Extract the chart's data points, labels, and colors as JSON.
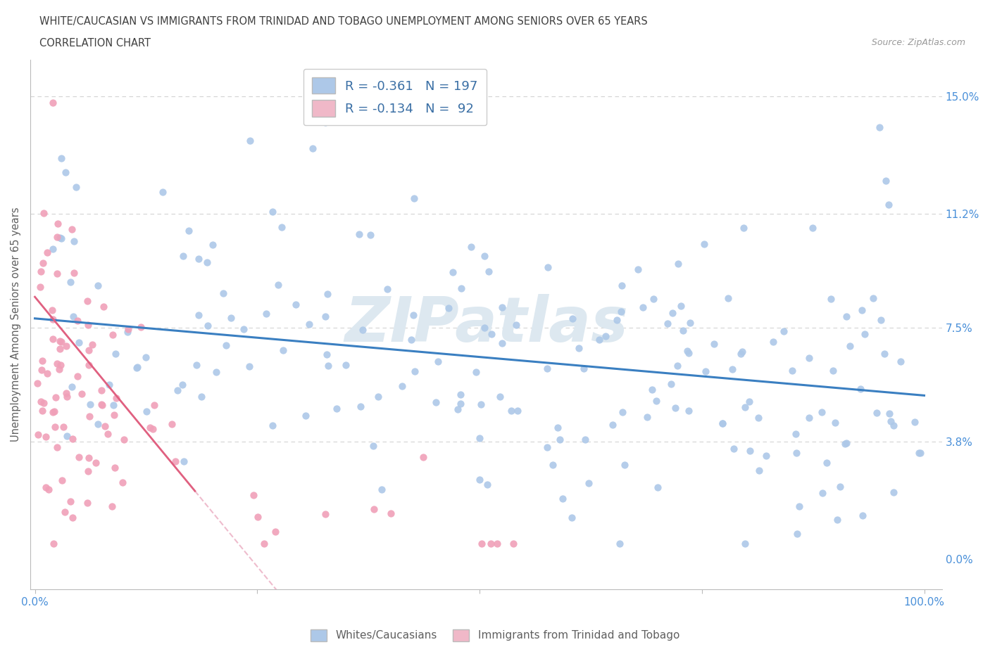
{
  "title_line1": "WHITE/CAUCASIAN VS IMMIGRANTS FROM TRINIDAD AND TOBAGO UNEMPLOYMENT AMONG SENIORS OVER 65 YEARS",
  "title_line2": "CORRELATION CHART",
  "source": "Source: ZipAtlas.com",
  "ylabel": "Unemployment Among Seniors over 65 years",
  "white_R": -0.361,
  "white_N": 197,
  "immigrant_R": -0.134,
  "immigrant_N": 92,
  "blue_dot_color": "#adc8e8",
  "pink_dot_color": "#f0a0b8",
  "blue_line_color": "#3a7fc1",
  "pink_line_color": "#e06080",
  "pink_dash_color": "#e8a0b8",
  "legend_blue_color": "#adc8e8",
  "legend_pink_color": "#f0b8c8",
  "grid_color": "#c8c8c8",
  "title_color": "#404040",
  "axis_label_color": "#606060",
  "tick_label_color": "#4a90d9",
  "legend_text_color": "#3a6fa5",
  "watermark_color": "#dde8f0",
  "dot_size": 55
}
